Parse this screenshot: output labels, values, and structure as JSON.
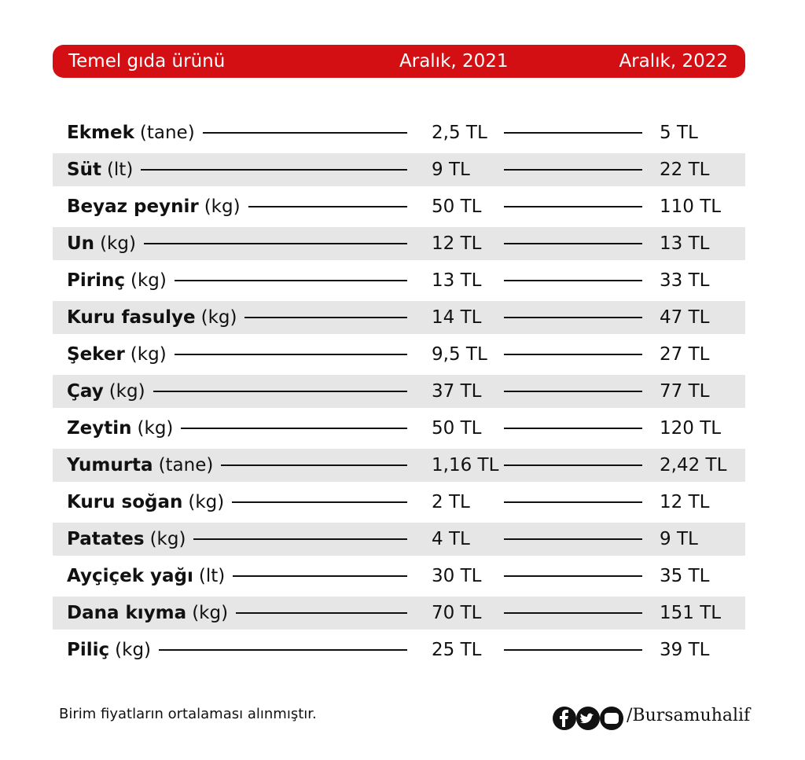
{
  "header": {
    "product": "Temel gıda ürünü",
    "col_2021": "Aralık, 2021",
    "col_2022": "Aralık, 2022"
  },
  "table": {
    "rows": [
      {
        "name": "Ekmek",
        "unit": "(tane)",
        "price_2021": "2,5 TL",
        "price_2022": "5 TL"
      },
      {
        "name": "Süt",
        "unit": "(lt)",
        "price_2021": "9 TL",
        "price_2022": "22 TL"
      },
      {
        "name": "Beyaz peynir",
        "unit": "(kg)",
        "price_2021": "50 TL",
        "price_2022": "110 TL"
      },
      {
        "name": "Un",
        "unit": "(kg)",
        "price_2021": "12 TL",
        "price_2022": "13 TL"
      },
      {
        "name": "Pirinç",
        "unit": "(kg)",
        "price_2021": "13 TL",
        "price_2022": "33 TL"
      },
      {
        "name": "Kuru fasulye",
        "unit": "(kg)",
        "price_2021": "14 TL",
        "price_2022": "47 TL"
      },
      {
        "name": "Şeker",
        "unit": "(kg)",
        "price_2021": "9,5 TL",
        "price_2022": "27 TL"
      },
      {
        "name": "Çay",
        "unit": "(kg)",
        "price_2021": "37 TL",
        "price_2022": "77 TL"
      },
      {
        "name": "Zeytin",
        "unit": "(kg)",
        "price_2021": "50 TL",
        "price_2022": "120 TL"
      },
      {
        "name": "Yumurta",
        "unit": "(tane)",
        "price_2021": "1,16 TL",
        "price_2022": "2,42 TL"
      },
      {
        "name": "Kuru soğan",
        "unit": "(kg)",
        "price_2021": "2 TL",
        "price_2022": "12 TL"
      },
      {
        "name": "Patates",
        "unit": "(kg)",
        "price_2021": "4 TL",
        "price_2022": "9 TL"
      },
      {
        "name": "Ayçiçek yağı",
        "unit": "(lt)",
        "price_2021": "30 TL",
        "price_2022": "35 TL"
      },
      {
        "name": "Dana kıyma",
        "unit": "(kg)",
        "price_2021": "70 TL",
        "price_2022": "151 TL"
      },
      {
        "name": "Piliç",
        "unit": "(kg)",
        "price_2021": "25 TL",
        "price_2022": "39 TL"
      }
    ]
  },
  "footer": {
    "note": "Birim fiyatların ortalaması alınmıştır.",
    "handle": "/Bursamuhalif"
  }
}
